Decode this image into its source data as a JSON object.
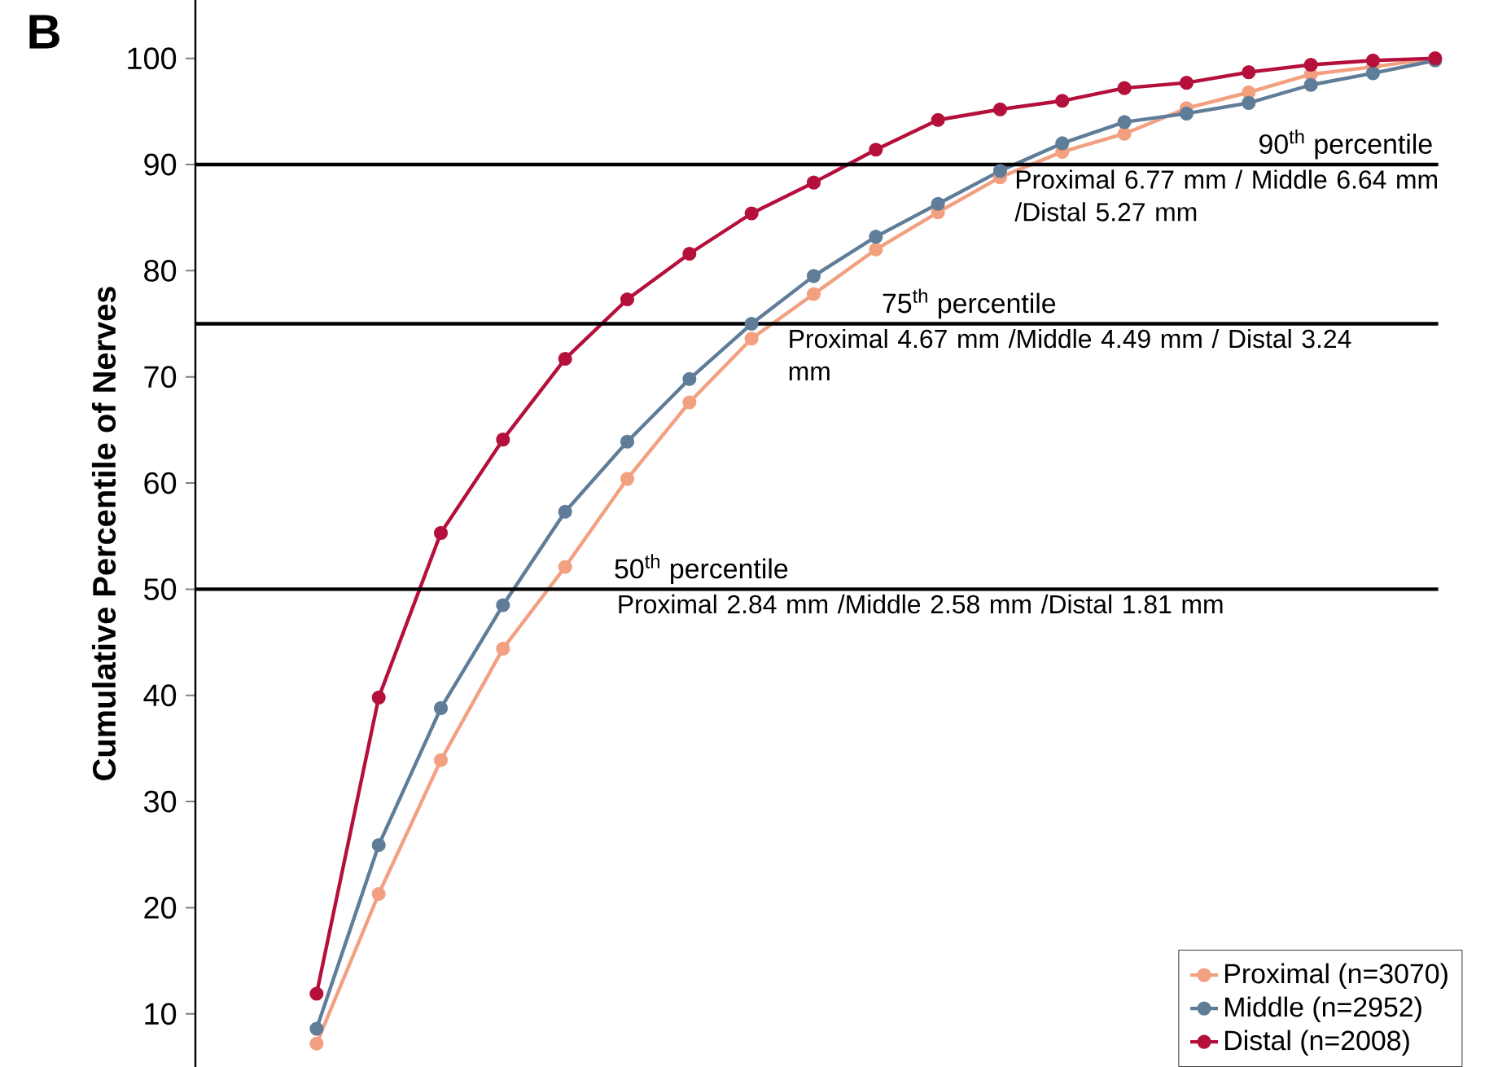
{
  "chart_data": {
    "type": "line",
    "title": "B",
    "ylabel": "Cumulative Percentile of Nerves",
    "categories": [
      null,
      null,
      null,
      null,
      null,
      null,
      null,
      null,
      null,
      null,
      null,
      null,
      null,
      null,
      null,
      null,
      null,
      null,
      null
    ],
    "series": [
      {
        "name": "Proximal (n=3070)",
        "color": "#f2a080",
        "values": [
          7.2,
          21.3,
          33.9,
          44.4,
          52.1,
          60.4,
          67.6,
          73.6,
          77.8,
          82.0,
          85.5,
          88.8,
          91.2,
          92.9,
          95.3,
          96.8,
          98.5,
          99.2,
          100
        ]
      },
      {
        "name": "Middle (n=2952)",
        "color": "#5f7d99",
        "values": [
          8.6,
          25.9,
          38.8,
          48.5,
          57.3,
          63.9,
          69.8,
          75.0,
          79.5,
          83.2,
          86.3,
          89.4,
          92.0,
          94.0,
          94.8,
          95.8,
          97.5,
          98.6,
          99.8
        ]
      },
      {
        "name": "Distal (n=2008)",
        "color": "#b5103c",
        "values": [
          11.9,
          39.8,
          55.3,
          64.1,
          71.7,
          77.3,
          81.6,
          85.4,
          88.3,
          91.4,
          94.2,
          95.2,
          96.0,
          97.2,
          97.7,
          98.7,
          99.4,
          99.8,
          100
        ]
      }
    ],
    "ylim": [
      5,
      105.5
    ],
    "yticks": [
      10,
      20,
      30,
      40,
      50,
      60,
      70,
      80,
      90,
      100
    ],
    "ref_lines": [
      {
        "axis": "y",
        "value": 90,
        "label": "90$^{th}$ percentile",
        "color": "#000000"
      },
      {
        "axis": "y",
        "value": 75,
        "label": "75$^{th}$ percentile",
        "color": "#000000"
      },
      {
        "axis": "y",
        "value": 50,
        "label": "50$^{th}$ percentile",
        "color": "#000000"
      }
    ],
    "annotations": [
      "Proximal 6.77 mm / Middle 6.64 mm /Distal 5.27 mm",
      "Proximal 4.67 mm /Middle 4.49 mm / Distal 3.24 mm",
      "Proximal 2.84 mm /Middle 2.58 mm /Distal 1.81 mm"
    ],
    "marker": "circle",
    "line_style": "solid",
    "legend": "bottom right",
    "grid": false,
    "tick_labels": "y"
  }
}
